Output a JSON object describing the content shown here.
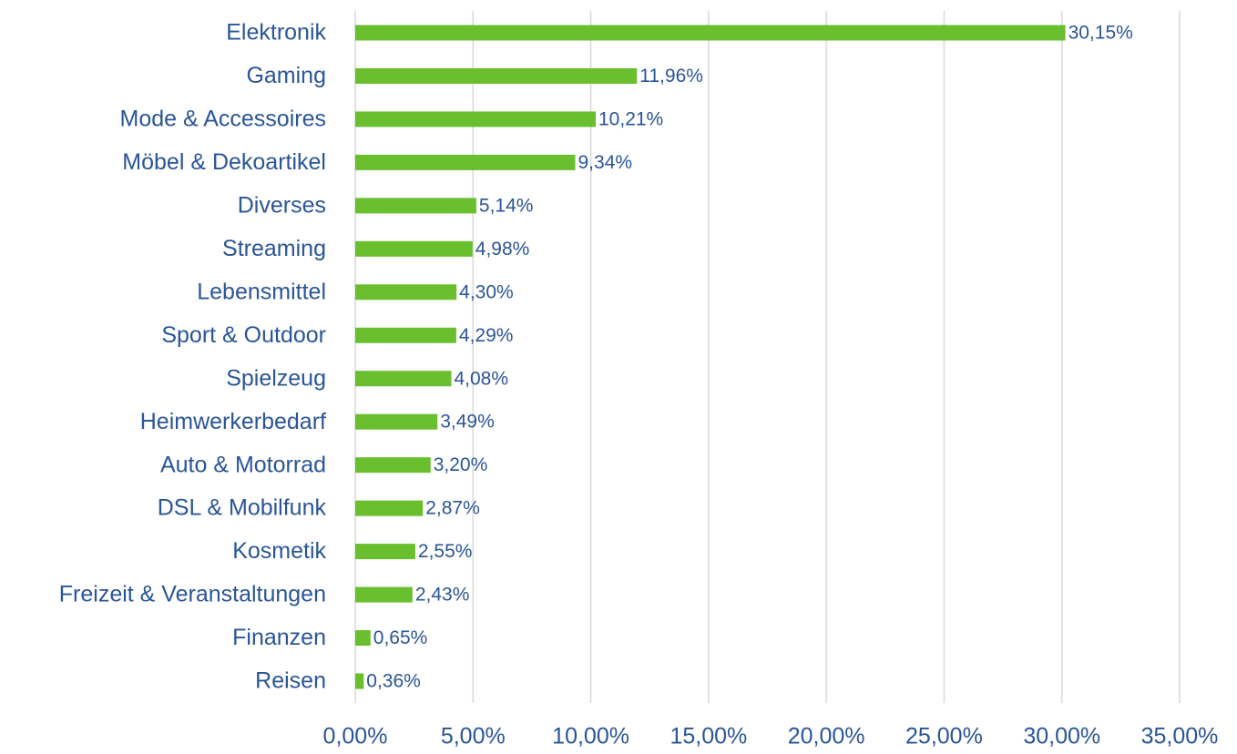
{
  "chart_data": {
    "type": "hbar",
    "categories": [
      "Elektronik",
      "Gaming",
      "Mode & Accessoires",
      "Möbel & Dekoartikel",
      "Diverses",
      "Streaming",
      "Lebensmittel",
      "Sport & Outdoor",
      "Spielzeug",
      "Heimwerkerbedarf",
      "Auto & Motorrad",
      "DSL & Mobilfunk",
      "Kosmetik",
      "Freizeit & Veranstaltungen",
      "Finanzen",
      "Reisen"
    ],
    "values": [
      30.15,
      11.96,
      10.21,
      9.34,
      5.14,
      4.98,
      4.3,
      4.29,
      4.08,
      3.49,
      3.2,
      2.87,
      2.55,
      2.43,
      0.65,
      0.36
    ],
    "value_labels": [
      "30,15%",
      "11,96%",
      "10,21%",
      "9,34%",
      "5,14%",
      "4,98%",
      "4,30%",
      "4,29%",
      "4,08%",
      "3,49%",
      "3,20%",
      "2,87%",
      "2,55%",
      "2,43%",
      "0,65%",
      "0,36%"
    ],
    "color": "#6abf2e",
    "xlim": [
      0,
      35
    ],
    "xticks": [
      {
        "value": 0,
        "label": "0,00%"
      },
      {
        "value": 5,
        "label": "5,00%"
      },
      {
        "value": 10,
        "label": "10,00%"
      },
      {
        "value": 15,
        "label": "15,00%"
      },
      {
        "value": 20,
        "label": "20,00%"
      },
      {
        "value": 25,
        "label": "25,00%"
      },
      {
        "value": 30,
        "label": "30,00%"
      },
      {
        "value": 35,
        "label": "35,00%"
      }
    ],
    "grid": true
  }
}
